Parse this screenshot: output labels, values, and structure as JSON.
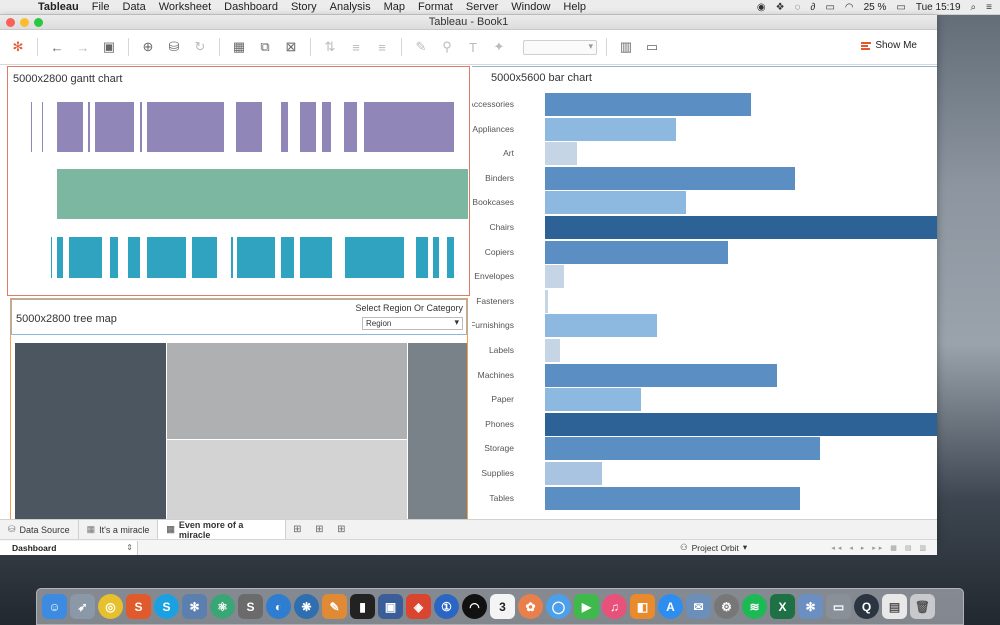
{
  "menubar": {
    "app": "Tableau",
    "items": [
      "File",
      "Data",
      "Worksheet",
      "Dashboard",
      "Story",
      "Analysis",
      "Map",
      "Format",
      "Server",
      "Window",
      "Help"
    ],
    "battery": "25 %",
    "clock": "Tue 15:19"
  },
  "window": {
    "title": "Tableau - Book1"
  },
  "toolbar": {
    "show_me_label": "Show Me"
  },
  "gantt": {
    "title": "5000x2800 gantt chart",
    "colors": {
      "row1": "#9087b8",
      "row2": "#7bb7a1",
      "row3": "#2fa3bf"
    }
  },
  "treemap": {
    "title": "5000x2800 tree map",
    "filter_label": "Select Region Or Category",
    "filter_value": "Region",
    "colors": [
      "#4b5661",
      "#aeb0b2",
      "#d3d3d3",
      "#7a8289"
    ]
  },
  "barchart": {
    "title": "5000x5600 bar chart"
  },
  "chart_data": {
    "type": "bar",
    "title": "5000x5600 bar chart",
    "orientation": "horizontal",
    "categories": [
      "Accessories",
      "Appliances",
      "Art",
      "Binders",
      "Bookcases",
      "Chairs",
      "Copiers",
      "Envelopes",
      "Fasteners",
      "Furnishings",
      "Labels",
      "Machines",
      "Paper",
      "Phones",
      "Storage",
      "Supplies",
      "Tables"
    ],
    "values": [
      206,
      131,
      32,
      250,
      141,
      392,
      183,
      19,
      3,
      112,
      15,
      232,
      96,
      392,
      275,
      57,
      255
    ],
    "colors": [
      "#5b8fc4",
      "#8db8df",
      "#c6d5e5",
      "#5b8fc4",
      "#8db8df",
      "#2d6296",
      "#5b8fc4",
      "#c6d5e5",
      "#c6d5e5",
      "#8db8df",
      "#c6d5e5",
      "#5b8fc4",
      "#8db8df",
      "#2d6296",
      "#5b8fc4",
      "#a9c4e0",
      "#5b8fc4"
    ],
    "grid": false
  },
  "tabs": {
    "data_source": "Data Source",
    "sheet1": "It's a miracle",
    "sheet2": "Even more of a miracle"
  },
  "status": {
    "sheet": "Dashboard",
    "user": "Project Orbit"
  }
}
